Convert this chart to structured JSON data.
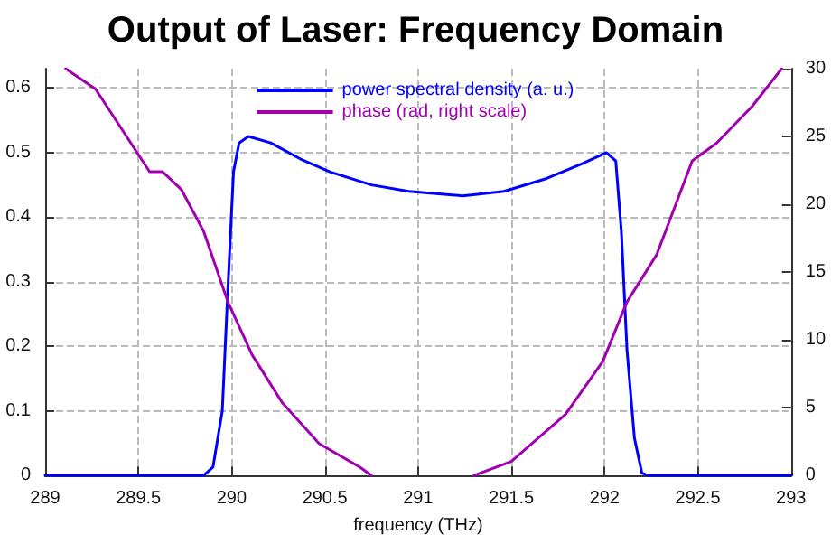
{
  "chart_data": {
    "type": "line",
    "title": "Output of Laser: Frequency Domain",
    "xlabel": "frequency (THz)",
    "xlim": [
      289,
      293
    ],
    "xticks": [
      289,
      289.5,
      290,
      290.5,
      291,
      291.5,
      292,
      292.5,
      293
    ],
    "ylim": [
      0,
      0.63
    ],
    "yticks": [
      0,
      0.1,
      0.2,
      0.3,
      0.4,
      0.5,
      0.6
    ],
    "y2lim": [
      0,
      30
    ],
    "y2ticks": [
      0,
      5,
      10,
      15,
      20,
      25,
      30
    ],
    "grid": true,
    "legend": "top",
    "marker": "none",
    "line_style": "solid",
    "series": [
      {
        "name": "power spectral density (a. u.)",
        "color": "#0000ff",
        "x": [
          289,
          289.5,
          289.85,
          289.9,
          289.95,
          289.98,
          290.01,
          290.04,
          290.09,
          290.21,
          290.37,
          290.53,
          290.75,
          290.95,
          291.24,
          291.46,
          291.69,
          291.88,
          292.01,
          292.06,
          292.09,
          292.12,
          292.16,
          292.2,
          292.23,
          292.5,
          293
        ],
        "values": [
          0,
          0,
          0,
          0.013,
          0.1,
          0.29,
          0.47,
          0.515,
          0.525,
          0.515,
          0.49,
          0.47,
          0.45,
          0.44,
          0.433,
          0.44,
          0.46,
          0.483,
          0.5,
          0.487,
          0.378,
          0.195,
          0.058,
          0.004,
          0,
          0,
          0
        ]
      },
      {
        "name": "phase (rad, right scale)",
        "color": "#a000b0",
        "axis": "y2",
        "x": [
          289.11,
          289.27,
          289.56,
          289.63,
          289.73,
          289.85,
          289.98,
          290.11,
          290.27,
          290.47,
          290.69,
          290.75,
          291,
          291.3,
          291.5,
          291.79,
          291.99,
          292.12,
          292.28,
          292.47,
          292.6,
          292.79,
          292.95
        ],
        "values": [
          30,
          28.5,
          22.4,
          22.4,
          21.1,
          18,
          12.8,
          8.9,
          5.4,
          2.35,
          0.6,
          0,
          null,
          0,
          1.04,
          4.5,
          8.4,
          12.8,
          16.3,
          23.2,
          24.5,
          27.2,
          30
        ]
      }
    ]
  }
}
